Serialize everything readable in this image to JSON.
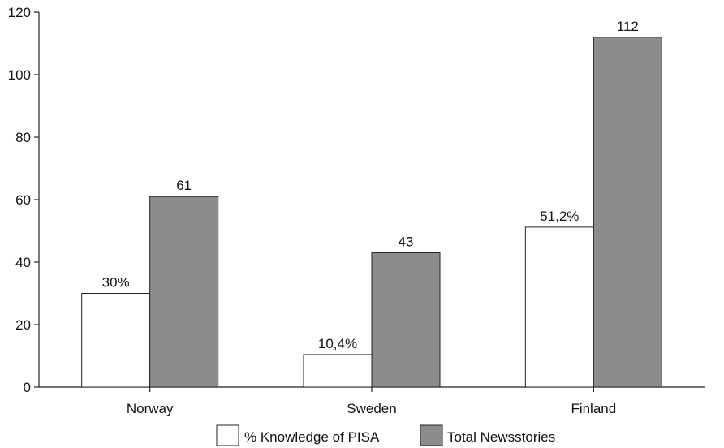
{
  "chart_data": {
    "type": "bar",
    "categories": [
      "Norway",
      "Sweden",
      "Finland"
    ],
    "series": [
      {
        "name": "% Knowledge of PISA",
        "values": [
          30,
          10.4,
          51.2
        ],
        "labels": [
          "30%",
          "10,4%",
          "51,2%"
        ],
        "color": "#ffffff"
      },
      {
        "name": "Total Newsstories",
        "values": [
          61,
          43,
          112
        ],
        "labels": [
          "61",
          "43",
          "112"
        ],
        "color": "#8c8c8e"
      }
    ],
    "ylim": [
      0,
      120
    ],
    "yticks": [
      0,
      20,
      40,
      60,
      80,
      100,
      120
    ],
    "title": "",
    "xlabel": "",
    "ylabel": "",
    "grid": false,
    "legend": "bottom"
  }
}
